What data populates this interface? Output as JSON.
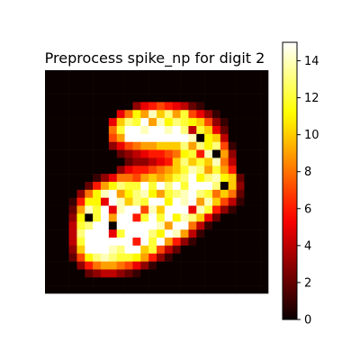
{
  "chart_data": {
    "type": "heatmap",
    "title": "Preprocess spike_np for digit 2",
    "rows": 28,
    "cols": 28,
    "vmin": 0,
    "vmax": 15,
    "colormap": "hot",
    "axes_visible": false,
    "colorbar": {
      "position": "right",
      "ticks": [
        0,
        2,
        4,
        6,
        8,
        10,
        12,
        14
      ],
      "tick_labels": [
        "0",
        "2",
        "4",
        "6",
        "8",
        "10",
        "12",
        "14"
      ]
    },
    "values": [
      [
        0,
        0,
        0,
        0,
        0,
        0,
        0,
        0,
        0,
        0,
        0,
        0,
        0,
        0,
        0,
        0,
        0,
        0,
        0,
        0,
        0,
        0,
        0,
        0,
        0,
        0,
        0,
        0
      ],
      [
        0,
        0,
        0,
        0,
        0,
        0,
        0,
        0,
        0,
        0,
        0,
        0,
        0,
        0,
        0,
        0,
        0,
        0,
        0,
        0,
        0,
        0,
        0,
        0,
        0,
        0,
        0,
        0
      ],
      [
        0,
        0,
        0,
        0,
        0,
        0,
        0,
        0,
        0,
        0,
        0,
        0,
        0,
        0,
        0,
        0,
        0,
        0,
        0,
        0,
        0,
        0,
        0,
        0,
        0,
        0,
        0,
        0
      ],
      [
        0,
        0,
        0,
        0,
        0,
        0,
        0,
        0,
        0,
        0,
        0,
        0,
        0,
        0,
        0,
        0,
        0,
        0,
        0,
        0,
        0,
        0,
        0,
        0,
        0,
        0,
        0,
        0
      ],
      [
        0,
        0,
        0,
        0,
        0,
        0,
        0,
        0,
        0,
        0,
        0,
        3,
        5,
        6,
        7,
        6,
        5,
        4,
        2,
        1,
        0,
        0,
        0,
        0,
        0,
        0,
        0,
        0
      ],
      [
        0,
        0,
        0,
        0,
        0,
        0,
        0,
        0,
        0,
        5,
        8,
        11,
        9,
        14,
        10,
        13,
        9,
        12,
        7,
        5,
        3,
        1,
        0,
        0,
        0,
        0,
        0,
        0
      ],
      [
        0,
        0,
        0,
        0,
        0,
        0,
        0,
        0,
        5,
        10,
        13,
        12,
        15,
        9,
        14,
        11,
        13,
        12,
        11,
        10,
        7,
        3,
        1,
        0,
        0,
        0,
        0,
        0
      ],
      [
        0,
        0,
        0,
        0,
        0,
        0,
        0,
        0,
        8,
        12,
        15,
        15,
        14,
        15,
        15,
        14,
        15,
        13,
        4,
        12,
        10,
        5,
        2,
        0,
        0,
        0,
        0,
        0
      ],
      [
        0,
        0,
        0,
        0,
        0,
        0,
        0,
        0,
        7,
        9,
        15,
        15,
        15,
        15,
        15,
        15,
        15,
        15,
        14,
        0,
        11,
        10,
        4,
        0,
        0,
        0,
        0,
        0
      ],
      [
        0,
        0,
        0,
        0,
        0,
        0,
        0,
        0,
        3,
        5,
        7,
        8,
        9,
        9,
        10,
        10,
        10,
        13,
        9,
        13,
        11,
        13,
        7,
        1,
        0,
        0,
        0,
        0
      ],
      [
        0,
        0,
        0,
        0,
        0,
        0,
        0,
        0,
        0,
        2,
        3,
        4,
        5,
        6,
        6,
        7,
        8,
        11,
        12,
        6,
        14,
        0,
        9,
        3,
        0,
        0,
        0,
        0
      ],
      [
        0,
        0,
        0,
        0,
        0,
        0,
        0,
        0,
        0,
        0,
        2,
        3,
        3,
        4,
        5,
        6,
        10,
        13,
        10,
        12,
        10,
        14,
        8,
        4,
        0,
        0,
        0,
        0
      ],
      [
        0,
        0,
        0,
        0,
        0,
        0,
        0,
        0,
        0,
        3,
        5,
        6,
        6,
        7,
        8,
        9,
        10,
        12,
        14,
        13,
        9,
        12,
        9,
        6,
        0,
        0,
        0,
        0
      ],
      [
        0,
        0,
        0,
        0,
        0,
        0,
        1,
        3,
        5,
        8,
        8,
        7,
        9,
        10,
        9,
        10,
        12,
        13,
        15,
        11,
        13,
        14,
        11,
        10,
        2,
        0,
        0,
        0
      ],
      [
        0,
        0,
        0,
        0,
        0,
        2,
        6,
        9,
        11,
        13,
        12,
        12,
        15,
        12,
        15,
        13,
        15,
        12,
        15,
        15,
        15,
        13,
        0,
        10,
        3,
        0,
        0,
        0
      ],
      [
        0,
        0,
        0,
        0,
        3,
        8,
        11,
        14,
        15,
        9,
        11,
        13,
        14,
        11,
        9,
        12,
        13,
        14,
        15,
        13,
        12,
        8,
        10,
        8,
        2,
        0,
        0,
        0
      ],
      [
        0,
        0,
        0,
        1,
        6,
        11,
        11,
        5,
        15,
        14,
        10,
        13,
        12,
        15,
        15,
        11,
        15,
        14,
        15,
        9,
        14,
        10,
        7,
        4,
        1,
        0,
        0,
        0
      ],
      [
        0,
        0,
        0,
        2,
        9,
        14,
        12,
        15,
        5,
        14,
        15,
        15,
        7,
        14,
        10,
        15,
        15,
        15,
        5,
        14,
        12,
        6,
        3,
        1,
        0,
        0,
        0,
        0
      ],
      [
        0,
        0,
        0,
        3,
        11,
        0,
        12,
        15,
        9,
        15,
        15,
        6,
        12,
        15,
        12,
        15,
        11,
        14,
        13,
        10,
        5,
        2,
        0,
        0,
        0,
        0,
        0,
        0
      ],
      [
        0,
        0,
        0,
        4,
        12,
        13,
        15,
        15,
        0,
        15,
        15,
        15,
        15,
        15,
        14,
        9,
        15,
        15,
        8,
        4,
        1,
        0,
        0,
        0,
        0,
        0,
        0,
        0
      ],
      [
        0,
        0,
        0,
        4,
        13,
        15,
        15,
        15,
        5,
        12,
        15,
        15,
        15,
        13,
        11,
        15,
        14,
        9,
        4,
        1,
        0,
        0,
        0,
        0,
        0,
        0,
        0,
        0
      ],
      [
        0,
        0,
        0,
        4,
        12,
        15,
        15,
        15,
        15,
        15,
        15,
        6,
        15,
        12,
        15,
        9,
        6,
        3,
        1,
        0,
        0,
        0,
        0,
        0,
        0,
        0,
        0,
        0
      ],
      [
        0,
        0,
        0,
        3,
        10,
        15,
        15,
        15,
        14,
        13,
        15,
        15,
        10,
        12,
        7,
        4,
        2,
        0,
        0,
        0,
        0,
        0,
        0,
        0,
        0,
        0,
        0,
        0
      ],
      [
        0,
        0,
        0,
        2,
        7,
        11,
        13,
        14,
        13,
        12,
        12,
        11,
        9,
        6,
        3,
        1,
        0,
        0,
        0,
        0,
        0,
        0,
        0,
        0,
        0,
        0,
        0,
        0
      ],
      [
        0,
        0,
        0,
        0,
        3,
        6,
        8,
        9,
        9,
        8,
        7,
        5,
        3,
        1,
        0,
        0,
        0,
        0,
        0,
        0,
        0,
        0,
        0,
        0,
        0,
        0,
        0,
        0
      ],
      [
        0,
        0,
        0,
        0,
        0,
        2,
        3,
        4,
        4,
        3,
        2,
        1,
        0,
        0,
        0,
        0,
        0,
        0,
        0,
        0,
        0,
        0,
        0,
        0,
        0,
        0,
        0,
        0
      ],
      [
        0,
        0,
        0,
        0,
        0,
        0,
        0,
        0,
        0,
        0,
        0,
        0,
        0,
        0,
        0,
        0,
        0,
        0,
        0,
        0,
        0,
        0,
        0,
        0,
        0,
        0,
        0,
        0
      ],
      [
        0,
        0,
        0,
        0,
        0,
        0,
        0,
        0,
        0,
        0,
        0,
        0,
        0,
        0,
        0,
        0,
        0,
        0,
        0,
        0,
        0,
        0,
        0,
        0,
        0,
        0,
        0,
        0
      ]
    ]
  }
}
